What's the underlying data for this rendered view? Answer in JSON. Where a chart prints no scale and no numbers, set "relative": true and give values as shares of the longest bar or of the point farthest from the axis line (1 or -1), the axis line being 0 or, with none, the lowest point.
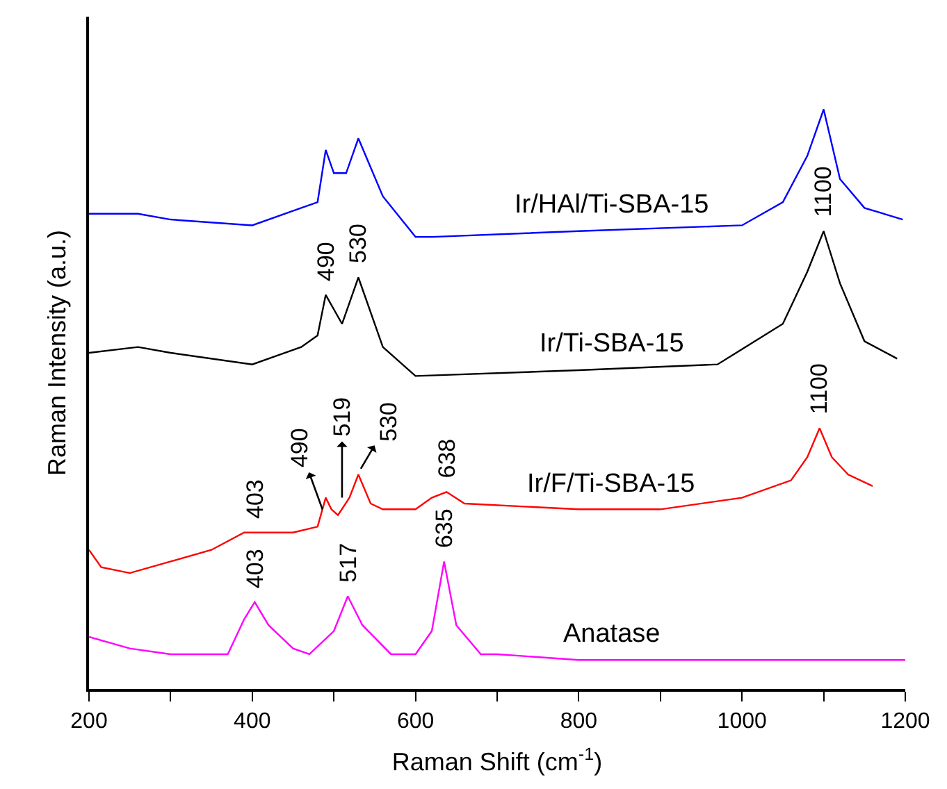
{
  "chart_data": {
    "type": "line",
    "relative": true,
    "xlabel": "Raman Shift (cm$^{-1}$)",
    "ylabel": "Raman Intensity (a.u.)",
    "xlim": [
      200,
      1200
    ],
    "xticks": [
      200,
      {
        "value": 300,
        "label": null
      },
      400,
      {
        "value": 500,
        "label": null
      },
      600,
      {
        "value": 700,
        "label": null
      },
      800,
      {
        "value": 900,
        "label": null
      },
      1000,
      {
        "value": 1100,
        "label": null
      },
      1200
    ],
    "legend": false,
    "marker": "none",
    "line_style": "solid",
    "series": [
      {
        "name": "Ir/HAl/Ti-SBA-15",
        "color": "#0000ff",
        "x": [
          200,
          260,
          300,
          400,
          460,
          480,
          490,
          500,
          515,
          530,
          560,
          600,
          620,
          800,
          1000,
          1050,
          1080,
          1100,
          1120,
          1150,
          1197
        ],
        "values": [
          0.82,
          0.82,
          0.81,
          0.8,
          0.83,
          0.84,
          0.93,
          0.89,
          0.89,
          0.95,
          0.85,
          0.78,
          0.78,
          0.79,
          0.8,
          0.84,
          0.92,
          1.0,
          0.88,
          0.83,
          0.81
        ]
      },
      {
        "name": "Ir/Ti-SBA-15",
        "color": "#000000",
        "x": [
          200,
          260,
          300,
          400,
          460,
          480,
          490,
          510,
          530,
          560,
          600,
          800,
          970,
          1050,
          1080,
          1100,
          1120,
          1150,
          1190
        ],
        "values": [
          0.58,
          0.59,
          0.58,
          0.56,
          0.59,
          0.61,
          0.68,
          0.63,
          0.71,
          0.59,
          0.54,
          0.55,
          0.56,
          0.63,
          0.72,
          0.79,
          0.7,
          0.6,
          0.57
        ]
      },
      {
        "name": "Ir/F/Ti-SBA-15",
        "color": "#ff0000",
        "x": [
          200,
          215,
          250,
          300,
          350,
          390,
          403,
          450,
          480,
          490,
          497,
          505,
          519,
          530,
          545,
          560,
          600,
          620,
          638,
          660,
          800,
          900,
          1000,
          1060,
          1080,
          1095,
          1110,
          1130,
          1160
        ],
        "values": [
          0.24,
          0.21,
          0.2,
          0.22,
          0.24,
          0.27,
          0.27,
          0.27,
          0.28,
          0.33,
          0.31,
          0.3,
          0.33,
          0.37,
          0.32,
          0.31,
          0.31,
          0.33,
          0.34,
          0.32,
          0.31,
          0.31,
          0.33,
          0.36,
          0.4,
          0.45,
          0.4,
          0.37,
          0.35
        ]
      },
      {
        "name": "Anatase",
        "color": "#ff00ff",
        "x": [
          200,
          250,
          300,
          370,
          390,
          403,
          420,
          450,
          470,
          500,
          517,
          535,
          570,
          600,
          620,
          635,
          650,
          680,
          700,
          800,
          1000,
          1200
        ],
        "values": [
          0.09,
          0.07,
          0.06,
          0.06,
          0.12,
          0.15,
          0.11,
          0.07,
          0.06,
          0.1,
          0.16,
          0.11,
          0.06,
          0.06,
          0.1,
          0.22,
          0.11,
          0.06,
          0.06,
          0.05,
          0.05,
          0.05
        ]
      }
    ],
    "annotations": [
      {
        "text": "490",
        "x": 490,
        "y": 0.68
      },
      {
        "text": "530",
        "x": 530,
        "y": 0.71
      },
      {
        "text": "1100",
        "x": 1100,
        "y": 0.79
      },
      {
        "text": "403",
        "x": 403,
        "y": 0.27
      },
      {
        "text": "490",
        "x": 486,
        "y": 0.31
      },
      {
        "text": "519",
        "x": 510,
        "y": 0.33
      },
      {
        "text": "530",
        "x": 533,
        "y": 0.38
      },
      {
        "text": "638",
        "x": 638,
        "y": 0.34
      },
      {
        "text": "1100",
        "x": 1095,
        "y": 0.45
      },
      {
        "text": "403",
        "x": 403,
        "y": 0.15
      },
      {
        "text": "517",
        "x": 517,
        "y": 0.16
      },
      {
        "text": "635",
        "x": 635,
        "y": 0.22
      }
    ]
  }
}
